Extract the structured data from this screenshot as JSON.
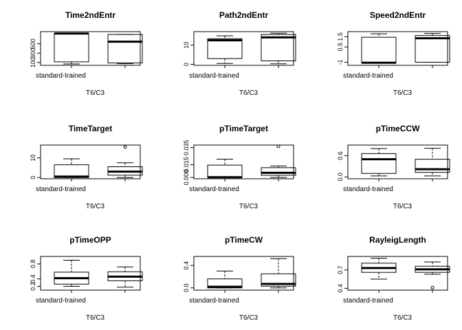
{
  "figure": {
    "rows": 3,
    "cols": 3
  },
  "chart_data": [
    {
      "type": "boxplot",
      "title": "Time2ndEntr",
      "xlabel": "T6/C3",
      "group_label": "standard-trained",
      "yticks": [
        100,
        300,
        500
      ],
      "ylim": [
        40,
        760
      ],
      "boxes": [
        {
          "whisker_low": 70,
          "q1": 115,
          "median": 720,
          "q3": 720,
          "whisker_high": 720,
          "outliers": []
        },
        {
          "whisker_low": 75,
          "q1": 90,
          "median": 545,
          "q3": 700,
          "whisker_high": 700,
          "outliers": []
        }
      ]
    },
    {
      "type": "boxplot",
      "title": "Path2ndEntr",
      "xlabel": "T6/C3",
      "group_label": "standard-trained",
      "yticks": [
        0,
        10
      ],
      "ylim": [
        -0.5,
        17
      ],
      "boxes": [
        {
          "whisker_low": 0.5,
          "q1": 3,
          "median": 12.5,
          "q3": 13.3,
          "whisker_high": 14.8,
          "outliers": []
        },
        {
          "whisker_low": 0.3,
          "q1": 1.8,
          "median": 14,
          "q3": 15.5,
          "whisker_high": 16.2,
          "outliers": []
        }
      ]
    },
    {
      "type": "boxplot",
      "title": "Speed2ndEntr",
      "xlabel": "T6/C3",
      "group_label": "standard-trained",
      "yticks": [
        -1.0,
        0.5,
        1.5
      ],
      "ylim": [
        -1.3,
        2.0
      ],
      "boxes": [
        {
          "whisker_low": -1.05,
          "q1": -1.05,
          "median": -1.05,
          "q3": 1.45,
          "whisker_high": 1.78,
          "outliers": []
        },
        {
          "whisker_low": -1.0,
          "q1": -1.0,
          "median": 1.35,
          "q3": 1.62,
          "whisker_high": 1.82,
          "outliers": []
        }
      ]
    },
    {
      "type": "boxplot",
      "title": "TimeTarget",
      "xlabel": "T6/C3",
      "group_label": "standard-trained",
      "yticks": [
        0,
        10
      ],
      "ylim": [
        -0.6,
        16.5
      ],
      "boxes": [
        {
          "whisker_low": 0,
          "q1": 0,
          "median": 0.5,
          "q3": 6.5,
          "whisker_high": 9.5,
          "outliers": []
        },
        {
          "whisker_low": 0,
          "q1": 1.2,
          "median": 3,
          "q3": 5.5,
          "whisker_high": 7.5,
          "outliers": [
            15.5
          ]
        }
      ]
    },
    {
      "type": "boxplot",
      "title": "pTimeTarget",
      "xlabel": "T6/C3",
      "group_label": "standard-trained",
      "yticks": [
        "0.000",
        "0.015",
        "0.035"
      ],
      "ytick_values": [
        0.0,
        0.015,
        0.035
      ],
      "ylim": [
        -0.0015,
        0.038
      ],
      "boxes": [
        {
          "whisker_low": 0,
          "q1": 0,
          "median": 0.0003,
          "q3": 0.0145,
          "whisker_high": 0.0215,
          "outliers": []
        },
        {
          "whisker_low": 0,
          "q1": 0.0025,
          "median": 0.0055,
          "q3": 0.0115,
          "whisker_high": 0.0135,
          "outliers": [
            0.0365
          ]
        }
      ]
    },
    {
      "type": "boxplot",
      "title": "pTimeCCW",
      "xlabel": "T6/C3",
      "group_label": "standard-trained",
      "yticks": [
        "0.0",
        "0.6"
      ],
      "ytick_values": [
        0.0,
        0.6
      ],
      "ylim": [
        -0.05,
        0.9
      ],
      "boxes": [
        {
          "whisker_low": 0.03,
          "q1": 0.1,
          "median": 0.5,
          "q3": 0.66,
          "whisker_high": 0.8,
          "outliers": []
        },
        {
          "whisker_low": 0.03,
          "q1": 0.13,
          "median": 0.22,
          "q3": 0.5,
          "whisker_high": 0.81,
          "outliers": []
        }
      ]
    },
    {
      "type": "boxplot",
      "title": "pTimeOPP",
      "xlabel": "T6/C3",
      "group_label": "standard-trained",
      "yticks": [
        "0.2",
        "0.4",
        "0.8"
      ],
      "ytick_values": [
        0.2,
        0.4,
        0.8
      ],
      "ylim": [
        0.1,
        1.0
      ],
      "boxes": [
        {
          "whisker_low": 0.2,
          "q1": 0.26,
          "median": 0.42,
          "q3": 0.58,
          "whisker_high": 0.9,
          "outliers": []
        },
        {
          "whisker_low": 0.18,
          "q1": 0.35,
          "median": 0.46,
          "q3": 0.59,
          "whisker_high": 0.72,
          "outliers": []
        }
      ]
    },
    {
      "type": "boxplot",
      "title": "pTimeCW",
      "xlabel": "T6/C3",
      "group_label": "standard-trained",
      "yticks": [
        "0.0",
        "0.4"
      ],
      "ytick_values": [
        0.0,
        0.4
      ],
      "ylim": [
        -0.04,
        0.56
      ],
      "boxes": [
        {
          "whisker_low": 0,
          "q1": 0,
          "median": 0.02,
          "q3": 0.16,
          "whisker_high": 0.3,
          "outliers": []
        },
        {
          "whisker_low": 0,
          "q1": 0.03,
          "median": 0.07,
          "q3": 0.25,
          "whisker_high": 0.52,
          "outliers": []
        }
      ]
    },
    {
      "type": "boxplot",
      "title": "RayleigLength",
      "xlabel": "T6/C3",
      "group_label": "standard-trained",
      "yticks": [
        "0.4",
        "0.7"
      ],
      "ytick_values": [
        0.4,
        0.7
      ],
      "ylim": [
        0.37,
        0.92
      ],
      "boxes": [
        {
          "whisker_low": 0.55,
          "q1": 0.66,
          "median": 0.73,
          "q3": 0.81,
          "whisker_high": 0.89,
          "outliers": []
        },
        {
          "whisker_low": 0.63,
          "q1": 0.66,
          "median": 0.71,
          "q3": 0.76,
          "whisker_high": 0.83,
          "outliers": [
            0.41
          ]
        }
      ]
    }
  ]
}
